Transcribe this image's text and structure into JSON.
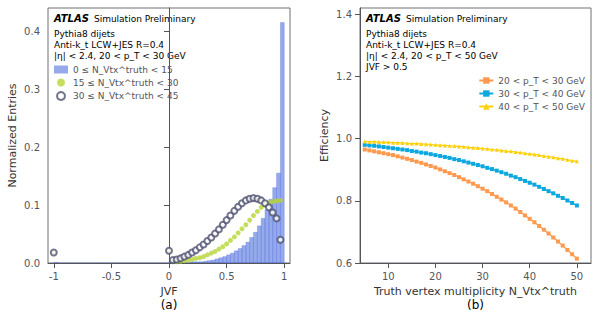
{
  "chart_data": [
    {
      "type": "histogram",
      "title": "(a)",
      "x_label": "JVF",
      "y_label": "Normalized Entries",
      "annotations": [
        "ATLAS",
        "Simulation Preliminary",
        "Pythia8 dijets",
        "Anti-k_t LCW+JES R=0.4",
        "|η| < 2.4, 20 < p_T < 30 GeV"
      ],
      "xlim": [
        -1.05,
        1.05
      ],
      "xticks": [
        -1.0,
        -0.5,
        0.0,
        0.5,
        1.0
      ],
      "ylim": [
        0.0,
        0.44
      ],
      "yticks": [
        {
          "value": 0.0,
          "label": "0.0"
        },
        0.1,
        0.2,
        0.3,
        0.4
      ],
      "grid": false,
      "legend": "upper left",
      "series": [
        {
          "name": "0 ≤ N_Vtx^truth < 15",
          "type": "histogram",
          "bins": [
            -1.0,
            -0.967,
            -0.933,
            -0.9,
            -0.867,
            -0.833,
            -0.8,
            -0.767,
            -0.733,
            -0.7,
            -0.667,
            -0.633,
            -0.6,
            -0.567,
            -0.533,
            -0.5,
            -0.467,
            -0.433,
            -0.4,
            -0.367,
            -0.333,
            -0.3,
            -0.267,
            -0.233,
            -0.2,
            -0.167,
            -0.133,
            -0.1,
            -0.067,
            -0.033,
            0.0,
            0.033,
            0.067,
            0.1,
            0.133,
            0.167,
            0.2,
            0.233,
            0.267,
            0.3,
            0.333,
            0.367,
            0.4,
            0.433,
            0.467,
            0.5,
            0.533,
            0.567,
            0.6,
            0.633,
            0.667,
            0.7,
            0.733,
            0.767,
            0.8,
            0.833,
            0.867,
            0.9,
            0.933,
            0.967,
            1.0
          ],
          "values": [
            0.001,
            0.0,
            0.0,
            0.0,
            0.0,
            0.0,
            0.0,
            0.0,
            0.0,
            0.0,
            0.0,
            0.0,
            0.0,
            0.0,
            0.0,
            0.0,
            0.0,
            0.0,
            0.0,
            0.0,
            0.0,
            0.0,
            0.0,
            0.0,
            0.0,
            0.0,
            0.0,
            0.0,
            0.0,
            0.0,
            0.003,
            0.001,
            0.001,
            0.001,
            0.001,
            0.001,
            0.002,
            0.002,
            0.002,
            0.003,
            0.004,
            0.005,
            0.007,
            0.009,
            0.011,
            0.014,
            0.017,
            0.021,
            0.025,
            0.03,
            0.036,
            0.044,
            0.053,
            0.064,
            0.077,
            0.092,
            0.11,
            0.13,
            0.155,
            0.415
          ]
        },
        {
          "name": "15 ≤ N_Vtx^truth < 30",
          "type": "scatter",
          "marker": "circle",
          "x": [
            -1.0,
            0.0,
            0.033,
            0.067,
            0.1,
            0.133,
            0.167,
            0.2,
            0.233,
            0.267,
            0.3,
            0.333,
            0.367,
            0.4,
            0.433,
            0.467,
            0.5,
            0.533,
            0.567,
            0.6,
            0.633,
            0.667,
            0.7,
            0.733,
            0.767,
            0.8,
            0.833,
            0.867,
            0.9,
            0.933,
            0.967
          ],
          "values": [
            0.018,
            0.02,
            0.003,
            0.002,
            0.003,
            0.004,
            0.005,
            0.006,
            0.008,
            0.009,
            0.011,
            0.014,
            0.017,
            0.02,
            0.024,
            0.028,
            0.033,
            0.039,
            0.045,
            0.052,
            0.059,
            0.066,
            0.074,
            0.082,
            0.089,
            0.096,
            0.1,
            0.104,
            0.106,
            0.107,
            0.108
          ]
        },
        {
          "name": "30 ≤ N_Vtx^truth < 45",
          "type": "scatter",
          "marker": "open circle",
          "x": [
            -1.0,
            0.0,
            0.033,
            0.067,
            0.1,
            0.133,
            0.167,
            0.2,
            0.233,
            0.267,
            0.3,
            0.333,
            0.367,
            0.4,
            0.433,
            0.467,
            0.5,
            0.533,
            0.567,
            0.6,
            0.633,
            0.667,
            0.7,
            0.733,
            0.767,
            0.8,
            0.833,
            0.867,
            0.9,
            0.933,
            0.967
          ],
          "values": [
            0.018,
            0.021,
            0.005,
            0.006,
            0.008,
            0.011,
            0.014,
            0.018,
            0.022,
            0.027,
            0.032,
            0.038,
            0.044,
            0.051,
            0.058,
            0.066,
            0.074,
            0.082,
            0.09,
            0.097,
            0.103,
            0.108,
            0.111,
            0.112,
            0.111,
            0.108,
            0.103,
            0.096,
            0.087,
            0.077,
            0.04
          ]
        }
      ]
    },
    {
      "type": "line",
      "title": "(b)",
      "x_label": "Truth vertex multiplicity N_Vtx^truth",
      "y_label": "Efficiency",
      "annotations": [
        "ATLAS",
        "Simulation Preliminary",
        "Pythia8 dijets",
        "Anti-k_t LCW+JES R=0.4",
        "|η| < 2.4, 20 < p_T < 50 GeV",
        "JVF > 0.5"
      ],
      "xlim": [
        4,
        53
      ],
      "xticks": [
        10,
        20,
        30,
        40,
        50
      ],
      "ylim": [
        0.6,
        1.42
      ],
      "yticks": [
        0.6,
        0.8,
        {
          "value": 1.0,
          "label": "1.0"
        },
        1.2,
        1.4
      ],
      "grid": false,
      "legend": "upper right",
      "series": [
        {
          "name": "20 < p_T < 30 GeV",
          "marker": "square",
          "x": [
            5,
            6,
            7,
            8,
            9,
            10,
            11,
            12,
            13,
            14,
            15,
            16,
            17,
            18,
            19,
            20,
            21,
            22,
            23,
            24,
            25,
            26,
            27,
            28,
            29,
            30,
            31,
            32,
            33,
            34,
            35,
            36,
            37,
            38,
            39,
            40,
            41,
            42,
            43,
            44,
            45,
            46,
            47,
            48,
            49,
            50
          ],
          "values": [
            0.965,
            0.962,
            0.959,
            0.956,
            0.953,
            0.95,
            0.947,
            0.943,
            0.939,
            0.935,
            0.931,
            0.926,
            0.922,
            0.917,
            0.912,
            0.907,
            0.901,
            0.895,
            0.889,
            0.883,
            0.876,
            0.869,
            0.862,
            0.855,
            0.847,
            0.839,
            0.831,
            0.822,
            0.813,
            0.804,
            0.795,
            0.785,
            0.775,
            0.764,
            0.753,
            0.742,
            0.731,
            0.719,
            0.707,
            0.695,
            0.682,
            0.669,
            0.656,
            0.642,
            0.628,
            0.614
          ]
        },
        {
          "name": "30 < p_T < 40 GeV",
          "marker": "square",
          "x": [
            5,
            6,
            7,
            8,
            9,
            10,
            11,
            12,
            13,
            14,
            15,
            16,
            17,
            18,
            19,
            20,
            21,
            22,
            23,
            24,
            25,
            26,
            27,
            28,
            29,
            30,
            31,
            32,
            33,
            34,
            35,
            36,
            37,
            38,
            39,
            40,
            41,
            42,
            43,
            44,
            45,
            46,
            47,
            48,
            49,
            50
          ],
          "values": [
            0.98,
            0.978,
            0.977,
            0.975,
            0.973,
            0.971,
            0.969,
            0.967,
            0.965,
            0.963,
            0.96,
            0.958,
            0.955,
            0.953,
            0.95,
            0.947,
            0.944,
            0.941,
            0.938,
            0.934,
            0.931,
            0.927,
            0.923,
            0.919,
            0.915,
            0.911,
            0.906,
            0.902,
            0.897,
            0.892,
            0.887,
            0.881,
            0.876,
            0.87,
            0.864,
            0.858,
            0.852,
            0.845,
            0.838,
            0.831,
            0.824,
            0.816,
            0.809,
            0.801,
            0.793,
            0.785
          ]
        },
        {
          "name": "40 < p_T < 50 GeV",
          "marker": "triangle",
          "x": [
            5,
            6,
            7,
            8,
            9,
            10,
            11,
            12,
            13,
            14,
            15,
            16,
            17,
            18,
            19,
            20,
            21,
            22,
            23,
            24,
            25,
            26,
            27,
            28,
            29,
            30,
            31,
            32,
            33,
            34,
            35,
            36,
            37,
            38,
            39,
            40,
            41,
            42,
            43,
            44,
            45,
            46,
            47,
            48,
            49,
            50
          ],
          "values": [
            0.991,
            0.99,
            0.99,
            0.989,
            0.989,
            0.988,
            0.987,
            0.987,
            0.986,
            0.985,
            0.984,
            0.984,
            0.983,
            0.982,
            0.981,
            0.98,
            0.979,
            0.978,
            0.977,
            0.976,
            0.975,
            0.974,
            0.972,
            0.971,
            0.97,
            0.968,
            0.967,
            0.965,
            0.964,
            0.962,
            0.96,
            0.959,
            0.957,
            0.955,
            0.953,
            0.951,
            0.949,
            0.947,
            0.944,
            0.942,
            0.94,
            0.937,
            0.935,
            0.932,
            0.929,
            0.927
          ]
        }
      ]
    }
  ]
}
